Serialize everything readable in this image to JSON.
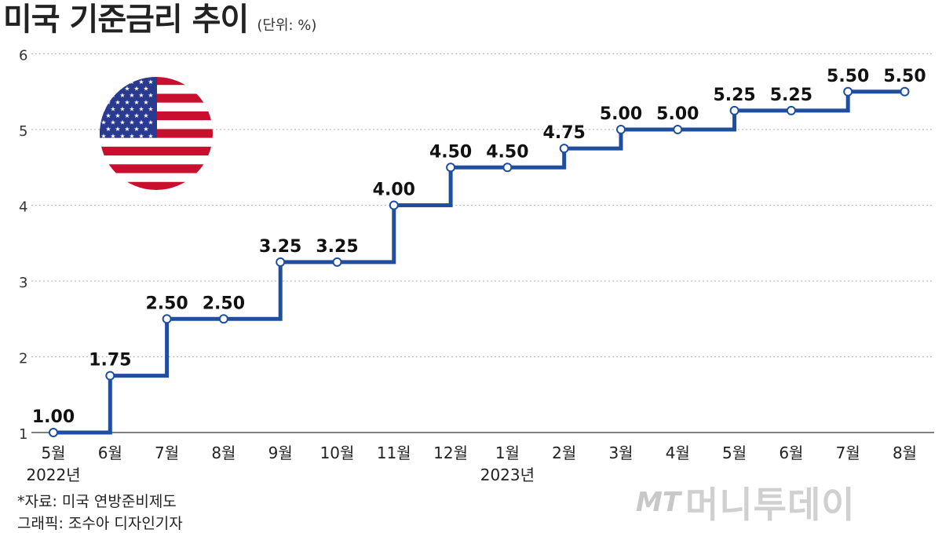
{
  "header": {
    "title": "미국 기준금리 추이",
    "unit": "(단위: %)"
  },
  "chart_data": {
    "type": "line",
    "step": true,
    "categories": [
      "5월",
      "6월",
      "7월",
      "8월",
      "9월",
      "10월",
      "11월",
      "12월",
      "1월",
      "2월",
      "3월",
      "4월",
      "5월",
      "6월",
      "7월",
      "8월"
    ],
    "values": [
      1.0,
      1.75,
      2.5,
      2.5,
      3.25,
      3.25,
      4.0,
      4.5,
      4.5,
      4.75,
      5.0,
      5.0,
      5.25,
      5.25,
      5.5,
      5.5
    ],
    "value_labels": [
      "1.00",
      "1.75",
      "2.50",
      "2.50",
      "3.25",
      "3.25",
      "4.00",
      "4.50",
      "4.50",
      "4.75",
      "5.00",
      "5.00",
      "5.25",
      "5.25",
      "5.50",
      "5.50"
    ],
    "year_labels": [
      {
        "label": "2022년",
        "category_index": 0
      },
      {
        "label": "2023년",
        "category_index": 8
      }
    ],
    "yticks": [
      "1",
      "2",
      "3",
      "4",
      "5",
      "6"
    ],
    "ylim": [
      1,
      6
    ],
    "grid": "horizontal-dotted",
    "line_color": "#1f4e9e"
  },
  "footer": {
    "source": "*자료: 미국 연방준비제도",
    "credit": "그래픽: 조수아 디자인기자"
  },
  "logo": {
    "mark": "MT",
    "name": "머니투데이"
  },
  "flag": {
    "icon": "us-flag-circle-icon",
    "colors": {
      "red": "#c8102e",
      "white": "#ffffff",
      "blue": "#2a3b8f"
    }
  }
}
